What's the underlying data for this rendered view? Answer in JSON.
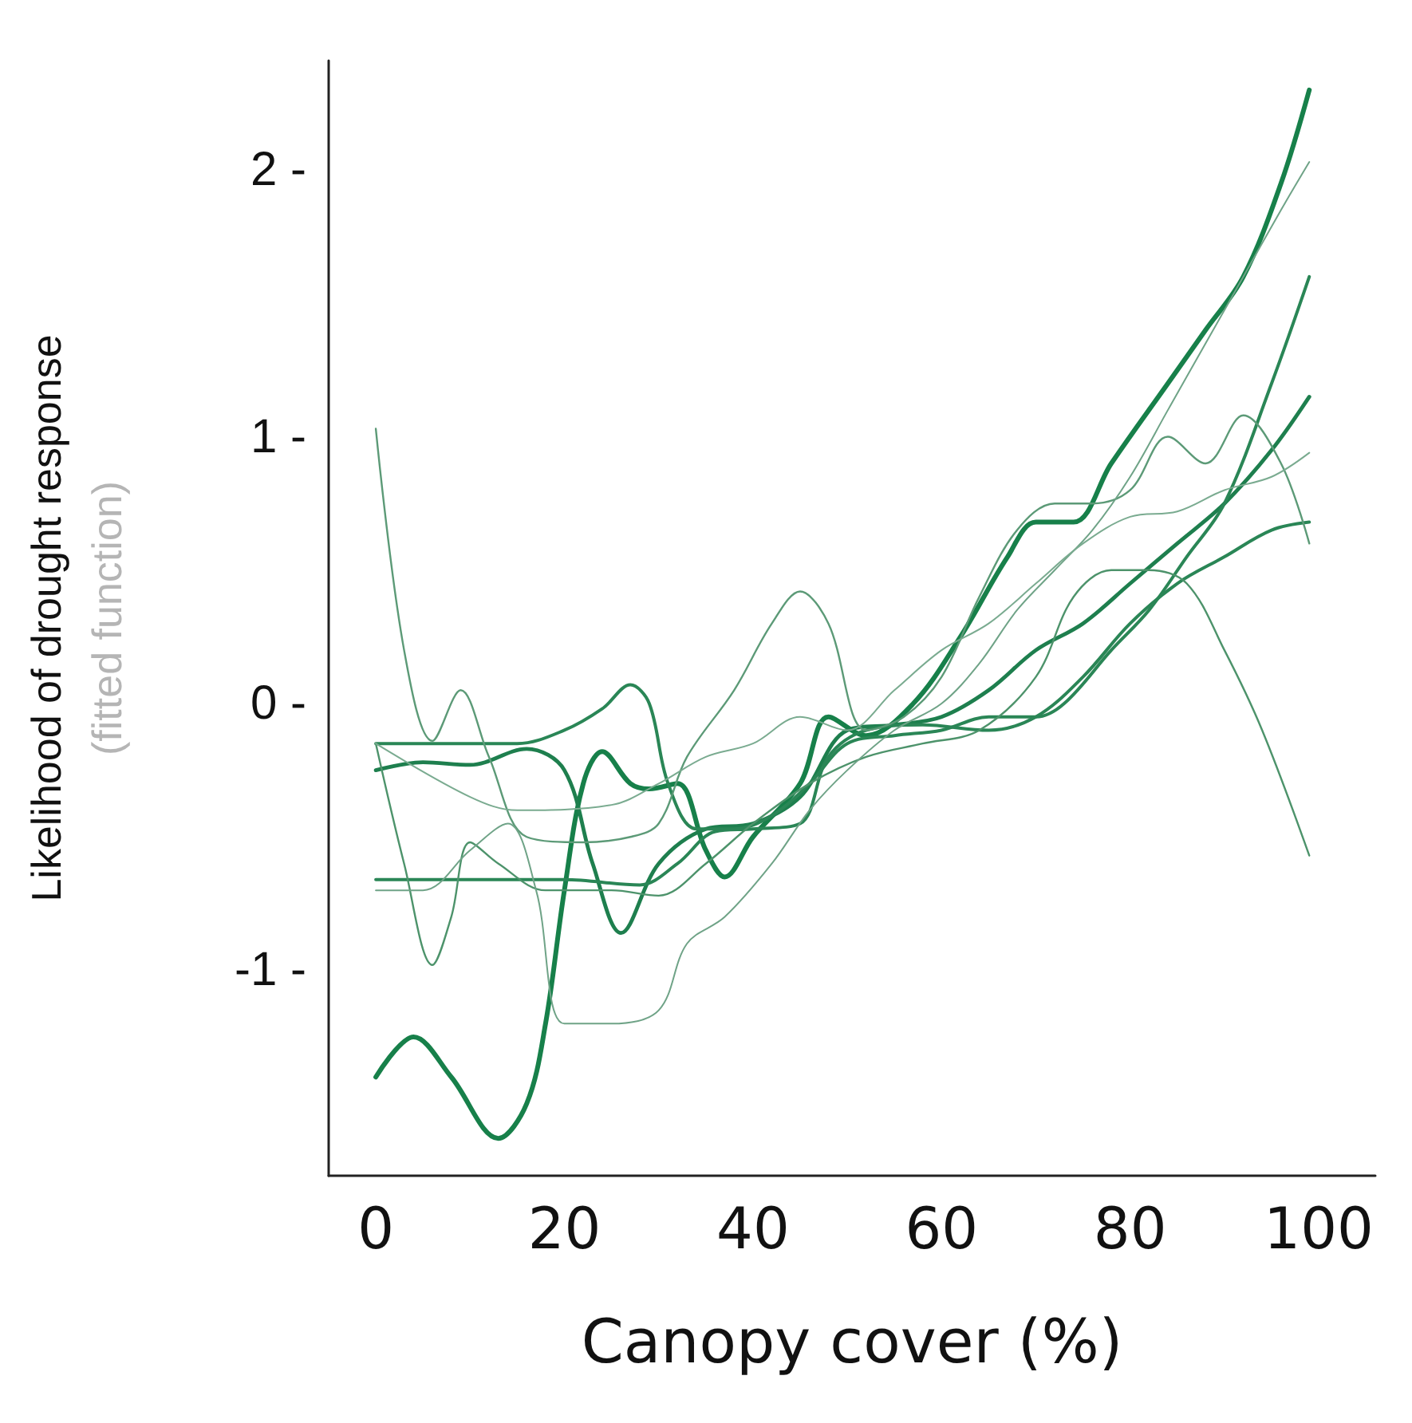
{
  "chart_data": {
    "type": "line",
    "xlabel": "Canopy cover (%)",
    "ylabel": "Likelihood of drought response\n(fitted function)",
    "xlim": [
      -5,
      106
    ],
    "ylim": [
      -1.77,
      2.41
    ],
    "xticks": [
      0,
      20,
      40,
      60,
      80,
      100
    ],
    "yticks": [
      {
        "value": -1,
        "label": "-1 -"
      },
      {
        "value": 0,
        "label": "0 -"
      },
      {
        "value": 1,
        "label": "1 -"
      },
      {
        "value": 2,
        "label": "2 -"
      }
    ],
    "grid": false,
    "marker": "none",
    "line_style": "solid",
    "series": [
      {
        "color": "#17804a",
        "x": [
          0,
          4,
          8,
          13,
          16,
          18,
          20,
          22,
          24,
          27,
          29,
          32,
          35,
          37,
          40,
          45,
          48,
          52,
          57,
          62,
          67,
          70,
          74,
          78,
          84,
          88,
          92,
          96,
          99
        ],
        "values": [
          -1.4,
          -1.25,
          -1.4,
          -1.63,
          -1.5,
          -1.2,
          -0.7,
          -0.3,
          -0.18,
          -0.3,
          -0.32,
          -0.3,
          -0.55,
          -0.65,
          -0.5,
          -0.3,
          -0.05,
          -0.12,
          0.0,
          0.25,
          0.55,
          0.68,
          0.68,
          0.9,
          1.2,
          1.4,
          1.6,
          1.95,
          2.3
        ]
      },
      {
        "color": "#1e7f4e",
        "x": [
          0,
          5,
          10,
          16,
          20,
          23,
          26,
          30,
          35,
          40,
          45,
          50,
          55,
          60,
          65,
          70,
          75,
          80,
          85,
          90,
          95,
          99
        ],
        "values": [
          -0.25,
          -0.22,
          -0.23,
          -0.17,
          -0.25,
          -0.6,
          -0.86,
          -0.6,
          -0.47,
          -0.45,
          -0.35,
          -0.1,
          -0.08,
          -0.05,
          0.05,
          0.2,
          0.3,
          0.45,
          0.6,
          0.75,
          0.95,
          1.15
        ]
      },
      {
        "color": "#2a8656",
        "x": [
          0,
          15,
          20,
          24,
          27,
          29,
          31,
          34,
          38,
          42,
          46,
          50,
          55,
          60,
          65,
          70,
          73,
          78,
          82,
          86,
          90,
          95,
          99
        ],
        "values": [
          -0.15,
          -0.15,
          -0.1,
          -0.02,
          0.07,
          0.0,
          -0.3,
          -0.47,
          -0.47,
          -0.42,
          -0.3,
          -0.15,
          -0.12,
          -0.1,
          -0.05,
          -0.05,
          0.0,
          0.2,
          0.35,
          0.55,
          0.75,
          1.2,
          1.6
        ]
      },
      {
        "color": "#2a8656",
        "x": [
          0,
          20,
          28,
          32,
          36,
          40,
          45,
          48,
          52,
          58,
          65,
          70,
          75,
          80,
          85,
          90,
          95,
          99
        ],
        "values": [
          -0.66,
          -0.66,
          -0.68,
          -0.6,
          -0.48,
          -0.47,
          -0.45,
          -0.2,
          -0.1,
          -0.08,
          -0.1,
          -0.05,
          0.1,
          0.3,
          0.45,
          0.55,
          0.65,
          0.68
        ]
      },
      {
        "color": "#5c9a77",
        "x": [
          0,
          3,
          6,
          9,
          12,
          16,
          22,
          27,
          30,
          33,
          38,
          42,
          45,
          48,
          52,
          56,
          60,
          64,
          68,
          72,
          76,
          80,
          84,
          88,
          92,
          96,
          99
        ],
        "values": [
          1.03,
          0.2,
          -0.14,
          0.05,
          -0.2,
          -0.5,
          -0.52,
          -0.5,
          -0.45,
          -0.2,
          0.05,
          0.3,
          0.42,
          0.3,
          -0.1,
          -0.05,
          0.1,
          0.4,
          0.65,
          0.75,
          0.75,
          0.8,
          1.0,
          0.9,
          1.08,
          0.9,
          0.6
        ]
      },
      {
        "color": "#4d936b",
        "x": [
          0,
          3,
          6,
          8,
          10,
          13,
          18,
          25,
          30,
          35,
          40,
          46,
          52,
          58,
          64,
          70,
          74,
          78,
          82,
          86,
          90,
          94,
          99
        ],
        "values": [
          -0.15,
          -0.6,
          -0.98,
          -0.8,
          -0.52,
          -0.6,
          -0.7,
          -0.7,
          -0.72,
          -0.6,
          -0.45,
          -0.3,
          -0.2,
          -0.15,
          -0.1,
          0.1,
          0.4,
          0.5,
          0.5,
          0.45,
          0.2,
          -0.1,
          -0.57
        ]
      },
      {
        "color": "#6fa387",
        "x": [
          0,
          5,
          10,
          14,
          17,
          20,
          25,
          30,
          33,
          37,
          42,
          46,
          50,
          55,
          60,
          64,
          68,
          72,
          76,
          80,
          84,
          88,
          92,
          96,
          99
        ],
        "values": [
          -0.7,
          -0.7,
          -0.55,
          -0.45,
          -0.7,
          -1.2,
          -1.2,
          -1.15,
          -0.9,
          -0.8,
          -0.6,
          -0.4,
          -0.25,
          -0.1,
          0.0,
          0.15,
          0.35,
          0.5,
          0.65,
          0.85,
          1.1,
          1.35,
          1.6,
          1.85,
          2.03
        ]
      },
      {
        "color": "#7aab90",
        "x": [
          0,
          10,
          15,
          25,
          30,
          35,
          40,
          45,
          50,
          55,
          60,
          65,
          70,
          75,
          80,
          85,
          90,
          95,
          99
        ],
        "values": [
          -0.15,
          -0.35,
          -0.4,
          -0.38,
          -0.3,
          -0.2,
          -0.15,
          -0.05,
          -0.1,
          0.05,
          0.2,
          0.3,
          0.45,
          0.6,
          0.7,
          0.72,
          0.8,
          0.85,
          0.94
        ]
      }
    ]
  }
}
